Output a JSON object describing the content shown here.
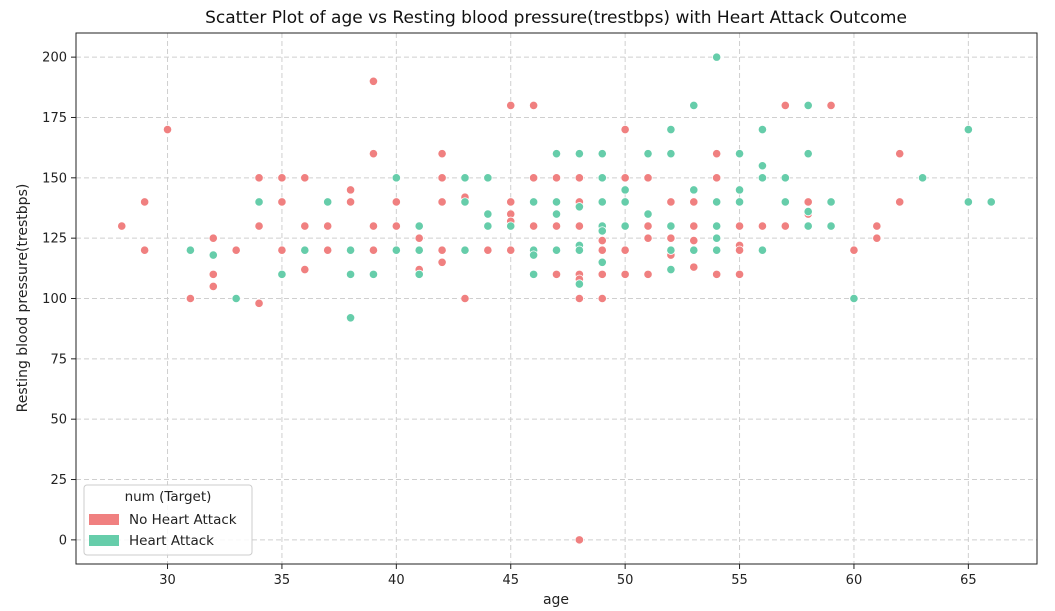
{
  "chart_data": {
    "type": "scatter",
    "title": "Scatter Plot of age vs Resting blood pressure(trestbps) with Heart Attack Outcome",
    "xlabel": "age",
    "ylabel": "Resting blood pressure(trestbps)",
    "xlim": [
      26,
      68
    ],
    "ylim": [
      -10,
      210
    ],
    "x_ticks": [
      30,
      35,
      40,
      45,
      50,
      55,
      60,
      65
    ],
    "y_ticks": [
      0,
      25,
      50,
      75,
      100,
      125,
      150,
      175,
      200
    ],
    "grid": true,
    "legend": {
      "title": "num (Target)",
      "placement": "lower-left",
      "entries": [
        "No Heart Attack",
        "Heart Attack"
      ]
    },
    "series": [
      {
        "name": "No Heart Attack",
        "color": "#f08080",
        "points": [
          [
            28,
            130
          ],
          [
            29,
            140
          ],
          [
            29,
            120
          ],
          [
            30,
            170
          ],
          [
            31,
            100
          ],
          [
            32,
            125
          ],
          [
            32,
            110
          ],
          [
            32,
            105
          ],
          [
            33,
            120
          ],
          [
            34,
            150
          ],
          [
            34,
            130
          ],
          [
            34,
            98
          ],
          [
            35,
            150
          ],
          [
            35,
            140
          ],
          [
            35,
            120
          ],
          [
            36,
            150
          ],
          [
            36,
            130
          ],
          [
            36,
            112
          ],
          [
            37,
            130
          ],
          [
            37,
            120
          ],
          [
            38,
            145
          ],
          [
            38,
            140
          ],
          [
            39,
            190
          ],
          [
            39,
            160
          ],
          [
            39,
            130
          ],
          [
            39,
            120
          ],
          [
            40,
            140
          ],
          [
            40,
            130
          ],
          [
            41,
            125
          ],
          [
            41,
            112
          ],
          [
            42,
            160
          ],
          [
            42,
            150
          ],
          [
            42,
            140
          ],
          [
            42,
            120
          ],
          [
            42,
            115
          ],
          [
            43,
            142
          ],
          [
            43,
            100
          ],
          [
            44,
            120
          ],
          [
            45,
            180
          ],
          [
            45,
            140
          ],
          [
            45,
            135
          ],
          [
            45,
            132
          ],
          [
            45,
            120
          ],
          [
            46,
            180
          ],
          [
            46,
            150
          ],
          [
            46,
            130
          ],
          [
            47,
            150
          ],
          [
            47,
            130
          ],
          [
            47,
            110
          ],
          [
            48,
            150
          ],
          [
            48,
            140
          ],
          [
            48,
            130
          ],
          [
            48,
            110
          ],
          [
            48,
            108
          ],
          [
            48,
            100
          ],
          [
            48,
            0
          ],
          [
            49,
            130
          ],
          [
            49,
            124
          ],
          [
            49,
            120
          ],
          [
            49,
            110
          ],
          [
            49,
            100
          ],
          [
            50,
            170
          ],
          [
            50,
            150
          ],
          [
            50,
            120
          ],
          [
            50,
            110
          ],
          [
            51,
            150
          ],
          [
            51,
            130
          ],
          [
            51,
            125
          ],
          [
            51,
            110
          ],
          [
            52,
            140
          ],
          [
            52,
            125
          ],
          [
            52,
            118
          ],
          [
            53,
            140
          ],
          [
            53,
            130
          ],
          [
            53,
            124
          ],
          [
            53,
            113
          ],
          [
            54,
            160
          ],
          [
            54,
            150
          ],
          [
            54,
            130
          ],
          [
            54,
            110
          ],
          [
            55,
            145
          ],
          [
            55,
            130
          ],
          [
            55,
            122
          ],
          [
            55,
            120
          ],
          [
            55,
            110
          ],
          [
            56,
            130
          ],
          [
            57,
            180
          ],
          [
            57,
            130
          ],
          [
            58,
            140
          ],
          [
            58,
            135
          ],
          [
            59,
            180
          ],
          [
            60,
            120
          ],
          [
            61,
            130
          ],
          [
            61,
            125
          ],
          [
            62,
            160
          ],
          [
            62,
            140
          ]
        ]
      },
      {
        "name": "Heart Attack",
        "color": "#66cdaa",
        "points": [
          [
            31,
            120
          ],
          [
            32,
            118
          ],
          [
            33,
            100
          ],
          [
            34,
            140
          ],
          [
            35,
            110
          ],
          [
            36,
            120
          ],
          [
            37,
            140
          ],
          [
            38,
            120
          ],
          [
            38,
            110
          ],
          [
            38,
            92
          ],
          [
            39,
            110
          ],
          [
            40,
            150
          ],
          [
            40,
            120
          ],
          [
            41,
            130
          ],
          [
            41,
            120
          ],
          [
            41,
            110
          ],
          [
            43,
            150
          ],
          [
            43,
            140
          ],
          [
            43,
            120
          ],
          [
            44,
            150
          ],
          [
            44,
            135
          ],
          [
            44,
            130
          ],
          [
            45,
            130
          ],
          [
            46,
            140
          ],
          [
            46,
            120
          ],
          [
            46,
            118
          ],
          [
            46,
            110
          ],
          [
            47,
            160
          ],
          [
            47,
            140
          ],
          [
            47,
            135
          ],
          [
            47,
            120
          ],
          [
            48,
            160
          ],
          [
            48,
            138
          ],
          [
            48,
            122
          ],
          [
            48,
            120
          ],
          [
            48,
            106
          ],
          [
            49,
            160
          ],
          [
            49,
            150
          ],
          [
            49,
            140
          ],
          [
            49,
            130
          ],
          [
            49,
            128
          ],
          [
            49,
            115
          ],
          [
            50,
            145
          ],
          [
            50,
            140
          ],
          [
            50,
            130
          ],
          [
            51,
            160
          ],
          [
            51,
            135
          ],
          [
            52,
            170
          ],
          [
            52,
            160
          ],
          [
            52,
            130
          ],
          [
            52,
            120
          ],
          [
            52,
            112
          ],
          [
            53,
            180
          ],
          [
            53,
            145
          ],
          [
            53,
            120
          ],
          [
            54,
            200
          ],
          [
            54,
            140
          ],
          [
            54,
            130
          ],
          [
            54,
            125
          ],
          [
            54,
            120
          ],
          [
            55,
            160
          ],
          [
            55,
            145
          ],
          [
            55,
            140
          ],
          [
            56,
            170
          ],
          [
            56,
            155
          ],
          [
            56,
            150
          ],
          [
            56,
            120
          ],
          [
            57,
            150
          ],
          [
            57,
            140
          ],
          [
            58,
            180
          ],
          [
            58,
            160
          ],
          [
            58,
            136
          ],
          [
            58,
            130
          ],
          [
            59,
            140
          ],
          [
            59,
            130
          ],
          [
            60,
            100
          ],
          [
            63,
            150
          ],
          [
            65,
            170
          ],
          [
            65,
            140
          ],
          [
            66,
            140
          ]
        ]
      }
    ]
  }
}
